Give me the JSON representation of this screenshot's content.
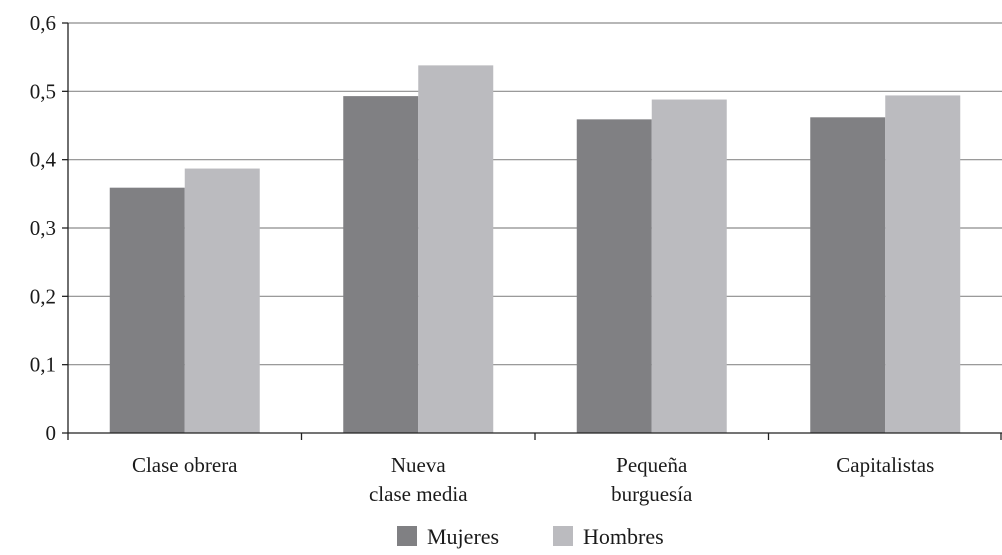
{
  "chart_data": {
    "type": "bar",
    "title": "",
    "xlabel": "",
    "ylabel": "",
    "ylim": [
      0,
      0.6
    ],
    "yticks": [
      0,
      0.1,
      0.2,
      0.3,
      0.4,
      0.5,
      0.6
    ],
    "ytick_labels": [
      "0",
      "0,1",
      "0,2",
      "0,3",
      "0,4",
      "0,5",
      "0,6"
    ],
    "grid": true,
    "legend_position": "bottom",
    "categories": [
      [
        "Clase obrera"
      ],
      [
        "Nueva",
        "clase media"
      ],
      [
        "Pequeña",
        "burguesía"
      ],
      [
        "Capitalistas"
      ]
    ],
    "series": [
      {
        "name": "Mujeres",
        "color": "#808083",
        "values": [
          0.359,
          0.493,
          0.459,
          0.462
        ]
      },
      {
        "name": "Hombres",
        "color": "#bbbbbf",
        "values": [
          0.387,
          0.538,
          0.488,
          0.494
        ]
      }
    ]
  }
}
